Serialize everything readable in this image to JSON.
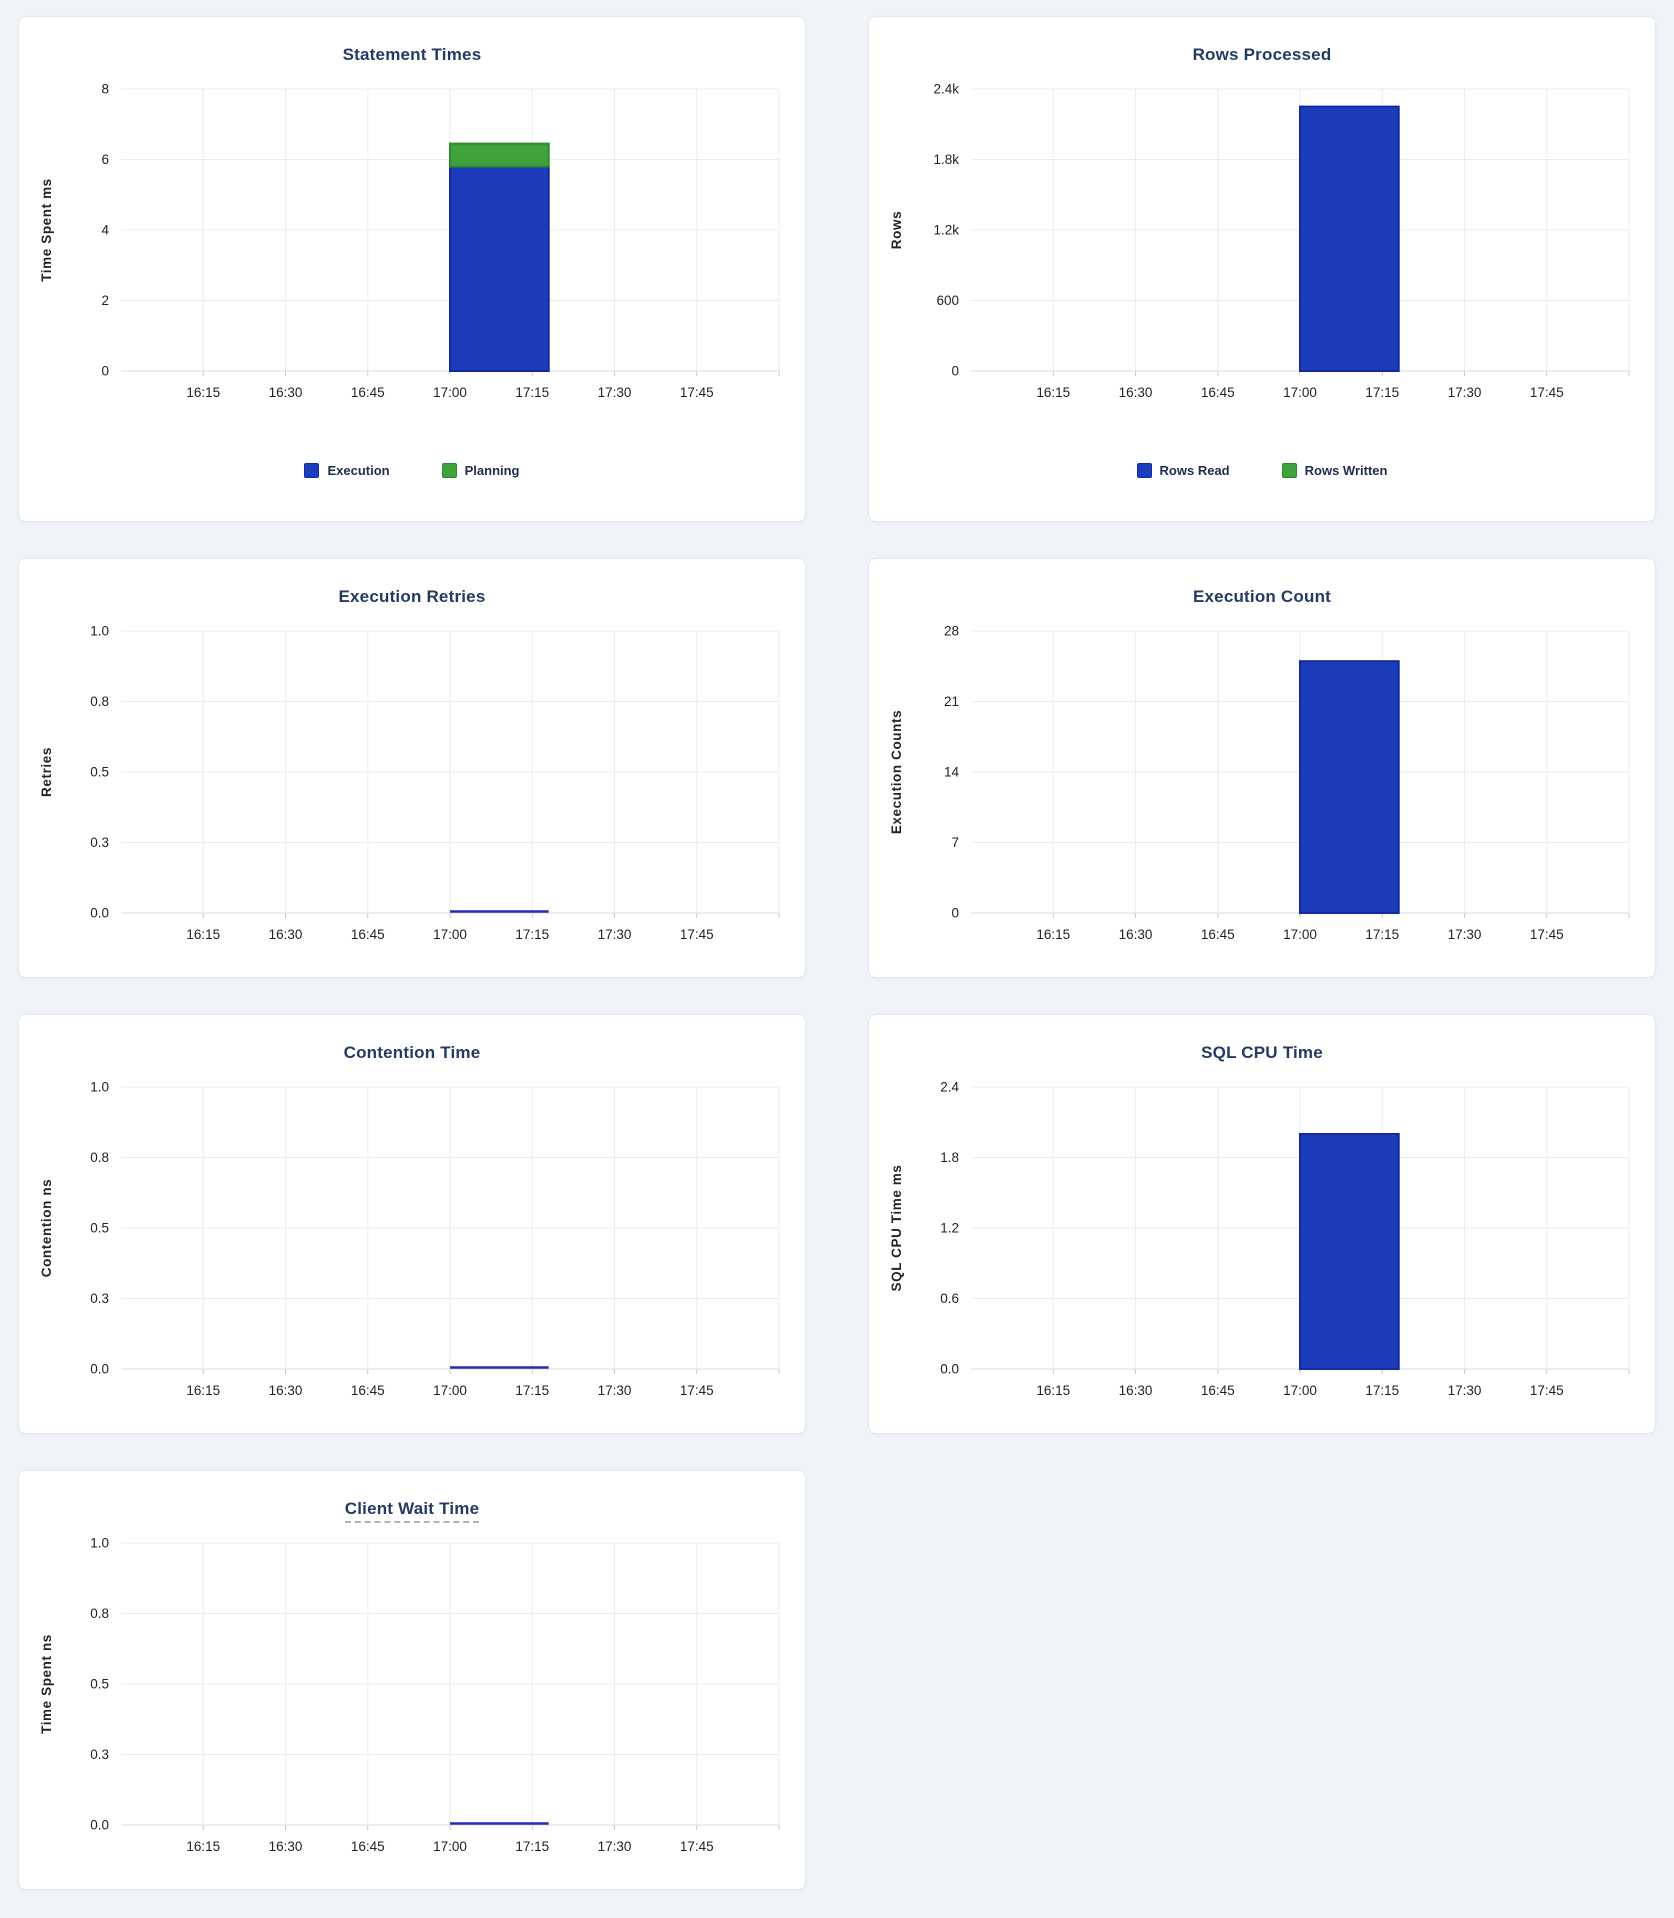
{
  "page": {
    "background": "#f0f4f8",
    "card_background": "#ffffff",
    "title_color": "#253a63",
    "accent_blue": "#1d3cba",
    "accent_green": "#3fa23d",
    "zero_line_color": "#2130b8"
  },
  "chart_data": [
    {
      "type": "bar",
      "title": "Statement Times",
      "ylabel": "Time Spent ms",
      "ymax": 8,
      "ytick_values": [
        0,
        2,
        4,
        6,
        8
      ],
      "ytick_labels": [
        "0",
        "2",
        "4",
        "6",
        "8"
      ],
      "x_domain": [
        "16:00",
        "18:00"
      ],
      "xticks": [
        "16:15",
        "16:30",
        "16:45",
        "17:00",
        "17:15",
        "17:30",
        "17:45"
      ],
      "bucket": {
        "start": "17:00",
        "end": "17:18"
      },
      "stacked": true,
      "legend": true,
      "grid": true,
      "title_tooltip_underline": false,
      "series": [
        {
          "name": "Execution",
          "value": 5.8,
          "color": "#1d3cba",
          "stroke": "#1428a0"
        },
        {
          "name": "Planning",
          "value": 0.65,
          "color": "#3fa23d",
          "stroke": "#2e8b2e"
        }
      ]
    },
    {
      "type": "bar",
      "title": "Rows Processed",
      "ylabel": "Rows",
      "ymax": 2400,
      "ytick_values": [
        0,
        600,
        1200,
        1800,
        2400
      ],
      "ytick_labels": [
        "0",
        "600",
        "1.2k",
        "1.8k",
        "2.4k"
      ],
      "x_domain": [
        "16:00",
        "18:00"
      ],
      "xticks": [
        "16:15",
        "16:30",
        "16:45",
        "17:00",
        "17:15",
        "17:30",
        "17:45"
      ],
      "bucket": {
        "start": "17:00",
        "end": "17:18"
      },
      "stacked": true,
      "legend": true,
      "grid": true,
      "title_tooltip_underline": false,
      "series": [
        {
          "name": "Rows Read",
          "value": 2250,
          "color": "#1d3cba",
          "stroke": "#1428a0"
        },
        {
          "name": "Rows Written",
          "value": 0,
          "color": "#3fa23d",
          "stroke": "#2e8b2e"
        }
      ]
    },
    {
      "type": "bar",
      "title": "Execution Retries",
      "ylabel": "Retries",
      "ymax": 1,
      "ytick_values": [
        0,
        0.25,
        0.5,
        0.75,
        1
      ],
      "ytick_labels": [
        "0.0",
        "0.3",
        "0.5",
        "0.8",
        "1.0"
      ],
      "x_domain": [
        "16:00",
        "18:00"
      ],
      "xticks": [
        "16:15",
        "16:30",
        "16:45",
        "17:00",
        "17:15",
        "17:30",
        "17:45"
      ],
      "bucket": {
        "start": "17:00",
        "end": "17:18"
      },
      "stacked": false,
      "legend": false,
      "grid": true,
      "title_tooltip_underline": false,
      "series": [
        {
          "name": "Retries",
          "value": 0,
          "color": "#1d3cba",
          "stroke": "#1428a0"
        }
      ]
    },
    {
      "type": "bar",
      "title": "Execution Count",
      "ylabel": "Execution Counts",
      "ymax": 28,
      "ytick_values": [
        0,
        7,
        14,
        21,
        28
      ],
      "ytick_labels": [
        "0",
        "7",
        "14",
        "21",
        "28"
      ],
      "x_domain": [
        "16:00",
        "18:00"
      ],
      "xticks": [
        "16:15",
        "16:30",
        "16:45",
        "17:00",
        "17:15",
        "17:30",
        "17:45"
      ],
      "bucket": {
        "start": "17:00",
        "end": "17:18"
      },
      "stacked": false,
      "legend": false,
      "grid": true,
      "title_tooltip_underline": false,
      "series": [
        {
          "name": "Execution Count",
          "value": 25,
          "color": "#1d3cba",
          "stroke": "#1428a0"
        }
      ]
    },
    {
      "type": "bar",
      "title": "Contention Time",
      "ylabel": "Contention ns",
      "ymax": 1,
      "ytick_values": [
        0,
        0.25,
        0.5,
        0.75,
        1
      ],
      "ytick_labels": [
        "0.0",
        "0.3",
        "0.5",
        "0.8",
        "1.0"
      ],
      "x_domain": [
        "16:00",
        "18:00"
      ],
      "xticks": [
        "16:15",
        "16:30",
        "16:45",
        "17:00",
        "17:15",
        "17:30",
        "17:45"
      ],
      "bucket": {
        "start": "17:00",
        "end": "17:18"
      },
      "stacked": false,
      "legend": false,
      "grid": true,
      "title_tooltip_underline": false,
      "series": [
        {
          "name": "Contention",
          "value": 0,
          "color": "#1d3cba",
          "stroke": "#1428a0"
        }
      ]
    },
    {
      "type": "bar",
      "title": "SQL CPU Time",
      "ylabel": "SQL CPU Time ms",
      "ymax": 2.4,
      "ytick_values": [
        0,
        0.6,
        1.2,
        1.8,
        2.4
      ],
      "ytick_labels": [
        "0.0",
        "0.6",
        "1.2",
        "1.8",
        "2.4"
      ],
      "x_domain": [
        "16:00",
        "18:00"
      ],
      "xticks": [
        "16:15",
        "16:30",
        "16:45",
        "17:00",
        "17:15",
        "17:30",
        "17:45"
      ],
      "bucket": {
        "start": "17:00",
        "end": "17:18"
      },
      "stacked": false,
      "legend": false,
      "grid": true,
      "title_tooltip_underline": false,
      "series": [
        {
          "name": "SQL CPU Time",
          "value": 2.0,
          "color": "#1d3cba",
          "stroke": "#1428a0"
        }
      ]
    },
    {
      "type": "bar",
      "title": "Client Wait Time",
      "ylabel": "Time Spent ns",
      "ymax": 1,
      "ytick_values": [
        0,
        0.25,
        0.5,
        0.75,
        1
      ],
      "ytick_labels": [
        "0.0",
        "0.3",
        "0.5",
        "0.8",
        "1.0"
      ],
      "x_domain": [
        "16:00",
        "18:00"
      ],
      "xticks": [
        "16:15",
        "16:30",
        "16:45",
        "17:00",
        "17:15",
        "17:30",
        "17:45"
      ],
      "bucket": {
        "start": "17:00",
        "end": "17:18"
      },
      "stacked": false,
      "legend": false,
      "grid": true,
      "title_tooltip_underline": true,
      "series": [
        {
          "name": "Client Wait",
          "value": 0,
          "color": "#1d3cba",
          "stroke": "#1428a0"
        }
      ]
    }
  ]
}
